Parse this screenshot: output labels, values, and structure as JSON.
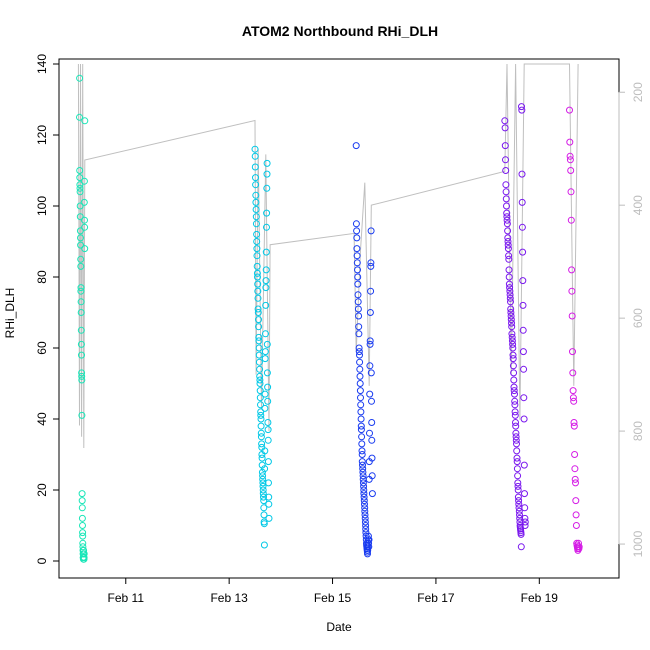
{
  "chart_data": {
    "type": "scatter",
    "title": "ATOM2 Northbound RHi_DLH",
    "xlabel": "Date",
    "ylabel": "RHi_DLH",
    "x_unit": "date",
    "xlim": [
      "2014-02-09 17:00",
      "2014-02-20 13:00"
    ],
    "ylim": [
      0,
      140
    ],
    "x_ticks": [
      {
        "date": "2014-02-11",
        "label": "Feb 11"
      },
      {
        "date": "2014-02-13",
        "label": "Feb 13"
      },
      {
        "date": "2014-02-15",
        "label": "Feb 15"
      },
      {
        "date": "2014-02-17",
        "label": "Feb 17"
      },
      {
        "date": "2014-02-19",
        "label": "Feb 19"
      }
    ],
    "y_ticks": [
      0,
      20,
      40,
      60,
      80,
      100,
      120,
      140
    ],
    "right_axis": {
      "description": "pressure axis, inverted, grey",
      "ticks": [
        200,
        400,
        600,
        800,
        1000
      ],
      "range_top": 150,
      "range_bottom": 1030
    },
    "grid": false,
    "legend": "none",
    "colors": {
      "line": "#bfbfbf",
      "right_axis": "#bdbdbd",
      "f1": "#19e6b8",
      "f2": "#00c8e6",
      "f3": "#1a3cf0",
      "f4": "#7a18ee",
      "f5": "#d51ce6"
    },
    "series": [
      {
        "flight": 1,
        "color_key": "f1",
        "segments": [
          {
            "start": "2014-02-10 02:30",
            "end": "2014-02-10 05:00",
            "values": [
              125,
              136,
              110,
              108,
              106,
              105,
              104,
              100,
              97,
              93,
              91,
              89,
              85,
              83,
              76,
              77,
              73,
              70,
              65,
              61,
              58,
              53,
              52,
              51,
              41,
              19,
              17,
              15,
              12,
              10,
              8,
              7,
              5,
              4,
              3,
              2,
              1,
              1,
              0.5,
              2,
              3,
              1,
              1,
              2,
              0.5,
              1,
              2,
              101,
              107,
              96,
              94,
              88,
              124
            ]
          }
        ]
      },
      {
        "flight": 2,
        "color_key": "f2",
        "segments": [
          {
            "start": "2014-02-13 12:00",
            "end": "2014-02-13 18:30",
            "values": [
              116,
              114,
              111,
              108,
              106,
              103,
              101,
              99,
              97,
              95,
              92,
              90,
              88,
              86,
              83,
              81,
              80,
              78,
              76,
              74,
              71,
              70,
              68,
              66,
              63,
              62,
              60,
              58,
              56,
              54,
              52,
              51,
              50,
              48,
              46,
              44,
              42,
              41,
              40,
              38,
              36,
              35,
              33,
              32,
              30,
              29,
              27,
              25,
              24,
              23,
              22,
              21,
              20,
              19,
              18,
              17,
              15,
              13,
              11,
              10.5,
              4.5,
              26,
              31,
              43,
              47,
              57,
              59,
              64,
              72,
              77,
              79,
              82,
              87,
              94,
              98,
              105,
              109,
              112,
              61,
              53,
              49,
              45,
              39,
              37,
              34,
              28,
              22,
              18,
              16,
              12
            ]
          }
        ]
      },
      {
        "flight": 3,
        "color_key": "f3",
        "segments": [
          {
            "start": "2014-02-15 11:00",
            "end": "2014-02-15 18:30",
            "values": [
              117,
              95,
              93,
              91,
              88,
              86,
              84,
              82,
              80,
              78,
              75,
              73,
              71,
              69,
              66,
              64,
              60,
              59,
              58,
              56,
              54,
              52,
              50,
              48,
              46,
              44,
              42,
              40,
              38,
              37,
              35,
              33,
              31,
              30,
              28,
              27,
              26,
              25,
              24,
              23,
              22,
              21,
              20,
              19,
              18,
              17,
              16,
              15,
              14,
              13,
              12,
              11,
              10,
              9,
              8,
              7,
              6,
              5,
              4.5,
              4,
              3.5,
              3,
              2.5,
              2,
              3,
              4,
              5,
              6,
              7,
              5,
              4,
              6,
              23,
              28,
              36,
              47,
              55,
              61,
              62,
              70,
              76,
              83,
              84,
              93,
              53,
              45,
              39,
              34,
              29,
              24,
              19
            ]
          }
        ]
      },
      {
        "flight": 4,
        "color_key": "f4",
        "segments": [
          {
            "start": "2014-02-18 08:00",
            "end": "2014-02-18 17:30",
            "values": [
              124,
              122,
              117,
              113,
              110,
              106,
              104,
              102,
              100,
              98,
              97,
              96,
              95,
              93,
              91,
              90,
              89,
              88,
              86,
              85,
              82,
              80,
              78,
              77,
              76,
              75,
              74,
              73,
              71,
              70,
              69,
              68,
              67,
              66,
              64,
              63,
              62,
              61,
              60,
              58,
              57,
              55,
              53,
              51,
              49,
              48,
              47,
              45,
              44,
              42,
              41,
              39,
              38,
              36,
              35,
              34,
              33,
              31,
              29,
              28,
              26,
              24,
              22,
              21,
              20,
              18,
              17,
              16,
              15,
              14,
              13,
              12,
              11,
              10,
              9.5,
              9,
              8.5,
              8,
              7.5,
              4,
              128,
              127,
              109,
              101,
              94,
              87,
              79,
              72,
              65,
              59,
              54,
              46,
              40,
              27,
              19,
              15,
              12,
              10,
              11
            ]
          }
        ]
      },
      {
        "flight": 5,
        "color_key": "f5",
        "segments": [
          {
            "start": "2014-02-19 14:00",
            "end": "2014-02-19 18:30",
            "values": [
              127,
              118,
              114,
              113,
              110,
              104,
              96,
              82,
              76,
              69,
              59,
              53,
              48,
              46,
              45,
              39,
              38,
              30,
              26,
              23,
              22,
              17,
              13,
              10,
              5,
              4.5,
              4,
              3.5,
              3,
              4,
              5,
              3.5,
              4
            ]
          }
        ]
      }
    ],
    "pressure_profile": {
      "description": "grey line on right (pressure) axis, approximate",
      "points": [
        [
          "2014-02-10 02:00",
          150
        ],
        [
          "2014-02-10 02:30",
          790
        ],
        [
          "2014-02-10 03:00",
          150
        ],
        [
          "2014-02-10 03:30",
          810
        ],
        [
          "2014-02-10 04:00",
          150
        ],
        [
          "2014-02-10 04:30",
          830
        ],
        [
          "2014-02-10 05:00",
          320
        ],
        [
          "2014-02-13 12:00",
          250
        ],
        [
          "2014-02-13 12:30",
          700
        ],
        [
          "2014-02-13 13:30",
          300
        ],
        [
          "2014-02-13 15:00",
          760
        ],
        [
          "2014-02-13 17:00",
          310
        ],
        [
          "2014-02-13 18:30",
          800
        ],
        [
          "2014-02-13 19:00",
          470
        ],
        [
          "2014-02-15 10:00",
          450
        ],
        [
          "2014-02-15 11:00",
          660
        ],
        [
          "2014-02-15 13:00",
          480
        ],
        [
          "2014-02-15 15:00",
          360
        ],
        [
          "2014-02-15 17:00",
          720
        ],
        [
          "2014-02-15 18:00",
          400
        ],
        [
          "2014-02-18 08:00",
          340
        ],
        [
          "2014-02-18 09:00",
          150
        ],
        [
          "2014-02-18 11:00",
          700
        ],
        [
          "2014-02-18 13:00",
          150
        ],
        [
          "2014-02-18 15:00",
          780
        ],
        [
          "2014-02-18 17:00",
          150
        ],
        [
          "2014-02-19 14:00",
          150
        ],
        [
          "2014-02-19 16:00",
          720
        ],
        [
          "2014-02-19 18:00",
          150
        ]
      ]
    }
  }
}
